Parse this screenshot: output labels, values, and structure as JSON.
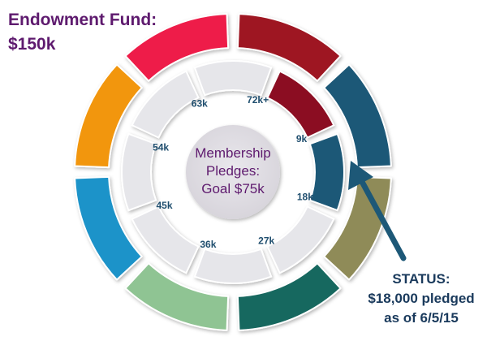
{
  "endowment": {
    "title_line1": "Endowment Fund:",
    "title_line2": "$150k"
  },
  "center": {
    "line1": "Membership",
    "line2": "Pledges:",
    "line3": "Goal $75k"
  },
  "inner_ring": {
    "labels": [
      "9k",
      "18k",
      "27k",
      "36k",
      "45k",
      "54k",
      "63k",
      "72k+"
    ],
    "filled_count": 2,
    "filled_colors": [
      "#8b1020",
      "#1d5877"
    ],
    "empty_color": "#e6e6ea"
  },
  "outer_ring": {
    "colors": [
      "#9e1420",
      "#1d5877",
      "#8f8b58",
      "#19675f",
      "#8fc493",
      "#1f93c9",
      "#f2960b",
      "#ee1d48"
    ]
  },
  "status": {
    "line1": "STATUS:",
    "line2": "$18,000 pledged",
    "line3": "as of 6/5/15",
    "arrow_color": "#1d5877"
  }
}
